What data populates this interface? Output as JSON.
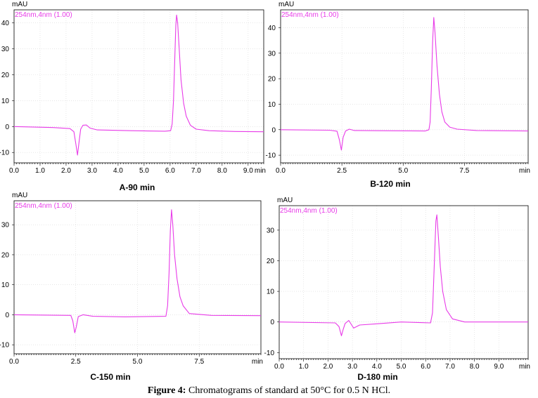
{
  "figure": {
    "caption_label": "Figure 4:",
    "caption_text": " Chromatograms of standard at 50°C for 0.5 N HCl."
  },
  "colors": {
    "trace": "#e83be8",
    "axis": "#000000",
    "grid": "#d8d8d8"
  },
  "chart_data": [
    {
      "type": "line",
      "title": "A-90 min",
      "ylabel": "mAU",
      "xlabel": "min",
      "legend": "254nm,4nm (1.00)",
      "xlim": [
        0,
        9.6
      ],
      "ylim": [
        -14,
        45
      ],
      "xticks": [
        0,
        1,
        2,
        3,
        4,
        5,
        6,
        7,
        8,
        9
      ],
      "xtick_labels": [
        "0.0",
        "1.0",
        "2.0",
        "3.0",
        "4.0",
        "5.0",
        "6.0",
        "7.0",
        "8.0",
        "9.0"
      ],
      "yticks": [
        -10,
        0,
        10,
        20,
        30,
        40
      ],
      "ytick_labels": [
        "-10",
        "0",
        "10",
        "20",
        "30",
        "40"
      ],
      "series": [
        {
          "points": [
            [
              0,
              0
            ],
            [
              1.5,
              -0.4
            ],
            [
              2.15,
              -0.8
            ],
            [
              2.3,
              -2
            ],
            [
              2.38,
              -7
            ],
            [
              2.44,
              -11
            ],
            [
              2.5,
              -6
            ],
            [
              2.56,
              -1
            ],
            [
              2.65,
              0.5
            ],
            [
              2.78,
              0.6
            ],
            [
              2.92,
              -0.6
            ],
            [
              3.2,
              -1.3
            ],
            [
              4.5,
              -1.6
            ],
            [
              5.8,
              -1.8
            ],
            [
              6.02,
              -1.6
            ],
            [
              6.08,
              1
            ],
            [
              6.13,
              10
            ],
            [
              6.18,
              26
            ],
            [
              6.22,
              39
            ],
            [
              6.25,
              43
            ],
            [
              6.29,
              40
            ],
            [
              6.35,
              30
            ],
            [
              6.42,
              18
            ],
            [
              6.52,
              9
            ],
            [
              6.62,
              4
            ],
            [
              6.78,
              0.5
            ],
            [
              7,
              -1
            ],
            [
              7.5,
              -1.6
            ],
            [
              8.5,
              -1.9
            ],
            [
              9.6,
              -2
            ]
          ]
        }
      ]
    },
    {
      "type": "line",
      "title": "B-120 min",
      "ylabel": "mAU",
      "xlabel": "min",
      "legend": "254nm,4nm (1.00)",
      "xlim": [
        0,
        10.1
      ],
      "ylim": [
        -13,
        47
      ],
      "xticks": [
        0,
        2.5,
        5,
        7.5
      ],
      "xtick_labels": [
        "0.0",
        "2.5",
        "5.0",
        "7.5"
      ],
      "yticks": [
        -10,
        0,
        10,
        20,
        30,
        40
      ],
      "ytick_labels": [
        "-10",
        "0",
        "10",
        "20",
        "30",
        "40"
      ],
      "series": [
        {
          "points": [
            [
              0,
              0
            ],
            [
              2,
              -0.2
            ],
            [
              2.3,
              -0.6
            ],
            [
              2.4,
              -4
            ],
            [
              2.48,
              -8
            ],
            [
              2.55,
              -3
            ],
            [
              2.65,
              -0.5
            ],
            [
              2.8,
              0.2
            ],
            [
              3,
              -0.3
            ],
            [
              4,
              -0.4
            ],
            [
              5.9,
              -0.5
            ],
            [
              6.05,
              0
            ],
            [
              6.1,
              3
            ],
            [
              6.15,
              16
            ],
            [
              6.2,
              34
            ],
            [
              6.25,
              44
            ],
            [
              6.3,
              38
            ],
            [
              6.38,
              25
            ],
            [
              6.48,
              14
            ],
            [
              6.58,
              7
            ],
            [
              6.7,
              3
            ],
            [
              6.9,
              1
            ],
            [
              7.2,
              0.2
            ],
            [
              8,
              -0.3
            ],
            [
              10.1,
              -0.5
            ]
          ]
        }
      ]
    },
    {
      "type": "line",
      "title": "C-150 min",
      "ylabel": "mAU",
      "xlabel": "min",
      "legend": "254nm,4nm (1.00)",
      "xlim": [
        0,
        10
      ],
      "ylim": [
        -13,
        38
      ],
      "xticks": [
        0,
        2.5,
        5,
        7.5
      ],
      "xtick_labels": [
        "0.0",
        "2.5",
        "5.0",
        "7.5"
      ],
      "yticks": [
        -10,
        0,
        10,
        20,
        30
      ],
      "ytick_labels": [
        "-10",
        "0",
        "10",
        "20",
        "30"
      ],
      "series": [
        {
          "points": [
            [
              0,
              0
            ],
            [
              2.3,
              -0.2
            ],
            [
              2.38,
              -2
            ],
            [
              2.46,
              -6
            ],
            [
              2.52,
              -4
            ],
            [
              2.6,
              -0.6
            ],
            [
              2.8,
              0
            ],
            [
              3.2,
              -0.5
            ],
            [
              4.5,
              -0.7
            ],
            [
              6.15,
              -0.5
            ],
            [
              6.22,
              3
            ],
            [
              6.28,
              14
            ],
            [
              6.33,
              28
            ],
            [
              6.38,
              35
            ],
            [
              6.43,
              30
            ],
            [
              6.5,
              20
            ],
            [
              6.6,
              12
            ],
            [
              6.72,
              6
            ],
            [
              6.85,
              3
            ],
            [
              7.1,
              0.4
            ],
            [
              8,
              -0.2
            ],
            [
              10,
              -0.3
            ]
          ]
        }
      ]
    },
    {
      "type": "line",
      "title": "D-180 min",
      "ylabel": "mAU",
      "xlabel": "min",
      "legend": "254nm,4nm (1.00)",
      "xlim": [
        0,
        10.2
      ],
      "ylim": [
        -12,
        38
      ],
      "xticks": [
        0,
        1,
        2,
        3,
        4,
        5,
        6,
        7,
        8,
        9
      ],
      "xtick_labels": [
        "0.0",
        "1.0",
        "2.0",
        "3.0",
        "4.0",
        "5.0",
        "6.0",
        "7.0",
        "8.0",
        "9.0"
      ],
      "yticks": [
        -10,
        0,
        10,
        20,
        30
      ],
      "ytick_labels": [
        "-10",
        "0",
        "10",
        "20",
        "30"
      ],
      "series": [
        {
          "points": [
            [
              0,
              0
            ],
            [
              2.3,
              -0.3
            ],
            [
              2.45,
              -1.5
            ],
            [
              2.55,
              -4.5
            ],
            [
              2.62,
              -2.5
            ],
            [
              2.7,
              -0.5
            ],
            [
              2.85,
              0.5
            ],
            [
              3.05,
              -2
            ],
            [
              3.3,
              -1
            ],
            [
              4,
              -0.6
            ],
            [
              5,
              0
            ],
            [
              5.8,
              -0.2
            ],
            [
              6.2,
              -0.3
            ],
            [
              6.28,
              3
            ],
            [
              6.35,
              18
            ],
            [
              6.42,
              33
            ],
            [
              6.46,
              35
            ],
            [
              6.52,
              28
            ],
            [
              6.6,
              18
            ],
            [
              6.7,
              10
            ],
            [
              6.85,
              4
            ],
            [
              7.1,
              1
            ],
            [
              7.6,
              0
            ],
            [
              10.2,
              0
            ]
          ]
        }
      ]
    }
  ]
}
